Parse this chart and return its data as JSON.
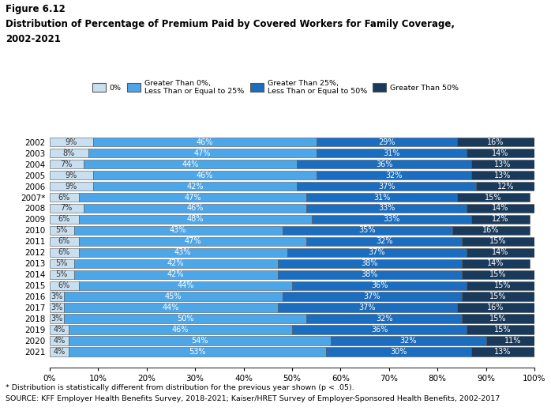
{
  "title_line1": "Figure 6.12",
  "title_line2": "Distribution of Percentage of Premium Paid by Covered Workers for Family Coverage,",
  "title_line3": "2002-2021",
  "years": [
    "2002",
    "2003",
    "2004",
    "2005",
    "2006",
    "2007*",
    "2008",
    "2009",
    "2010",
    "2011",
    "2012",
    "2013",
    "2014",
    "2015",
    "2016",
    "2017",
    "2018",
    "2019",
    "2020",
    "2021"
  ],
  "cat1": [
    9,
    8,
    7,
    9,
    9,
    6,
    7,
    6,
    5,
    6,
    6,
    5,
    5,
    6,
    3,
    3,
    3,
    4,
    4,
    4
  ],
  "cat2": [
    46,
    47,
    44,
    46,
    42,
    47,
    46,
    48,
    43,
    47,
    43,
    42,
    42,
    44,
    45,
    44,
    50,
    46,
    54,
    53
  ],
  "cat3": [
    29,
    31,
    36,
    32,
    37,
    31,
    33,
    33,
    35,
    32,
    37,
    38,
    38,
    36,
    37,
    37,
    32,
    36,
    32,
    30
  ],
  "cat4": [
    16,
    14,
    13,
    13,
    12,
    15,
    14,
    12,
    16,
    15,
    14,
    14,
    15,
    15,
    15,
    16,
    15,
    15,
    11,
    13
  ],
  "color1": "#c8dff0",
  "color2": "#4da6e8",
  "color3": "#1a6dbf",
  "color4": "#1a3a5c",
  "legend_labels": [
    "0%",
    "Greater Than 0%,\nLess Than or Equal to 25%",
    "Greater Than 25%,\nLess Than or Equal to 50%",
    "Greater Than 50%"
  ],
  "footnote1": "* Distribution is statistically different from distribution for the previous year shown (p < .05).",
  "footnote2": "SOURCE: KFF Employer Health Benefits Survey, 2018-2021; Kaiser/HRET Survey of Employer-Sponsored Health Benefits, 2002-2017",
  "bar_height": 0.82,
  "figsize": [
    6.98,
    5.25
  ],
  "dpi": 100
}
